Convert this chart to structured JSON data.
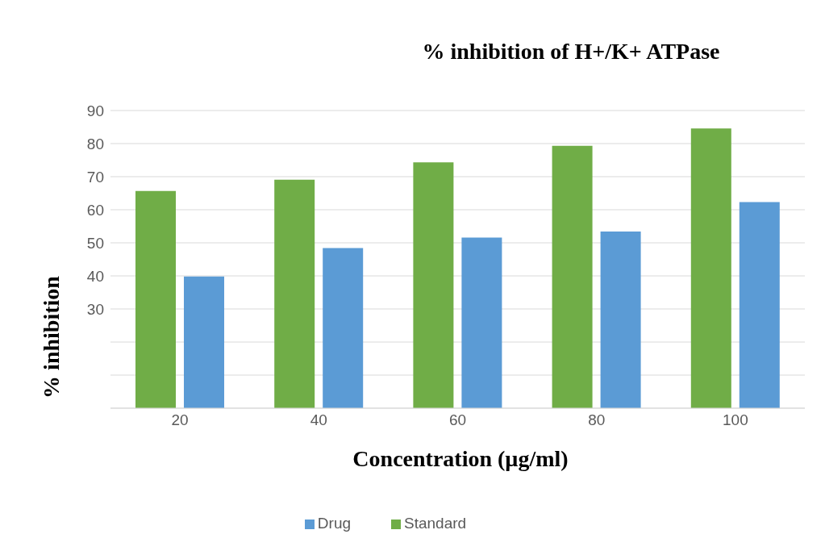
{
  "chart_data": {
    "type": "bar",
    "title": "% inhibition of H+/K+ ATPase",
    "xlabel": "Concentration (µg/ml)",
    "ylabel": "% inhibition",
    "categories": [
      "20",
      "40",
      "60",
      "80",
      "100"
    ],
    "series": [
      {
        "name": "Standard",
        "color": "#70ad47",
        "values": [
          65.7,
          69.1,
          74.3,
          79.3,
          84.6
        ]
      },
      {
        "name": "Drug",
        "color": "#5b9bd5",
        "values": [
          39.8,
          48.4,
          51.6,
          53.4,
          62.3
        ]
      }
    ],
    "ylim": [
      0,
      90
    ],
    "yticks": [
      {
        "value": 0,
        "label": null
      },
      {
        "value": 10,
        "label": null
      },
      {
        "value": 20,
        "label": null
      },
      30,
      40,
      50,
      60,
      70,
      80,
      90
    ],
    "grid": "y",
    "legend": "bottom"
  }
}
